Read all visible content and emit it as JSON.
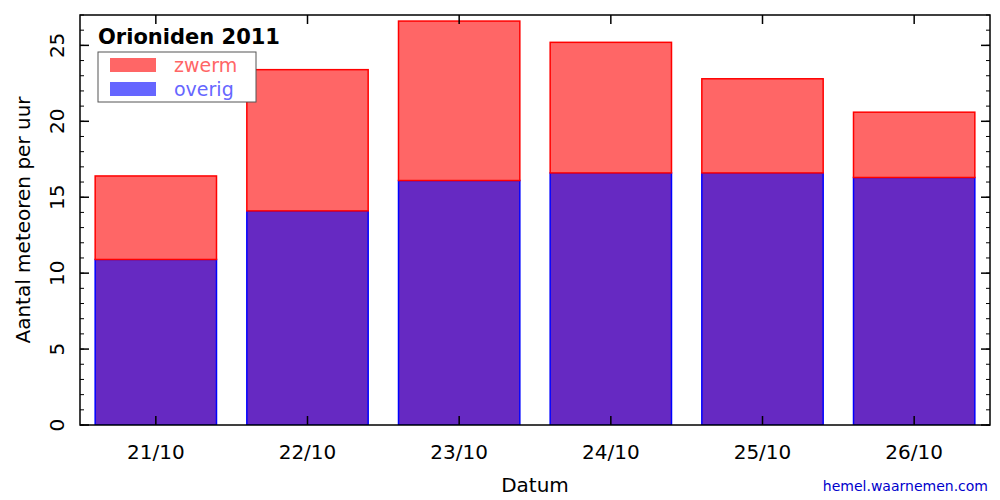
{
  "chart_data": {
    "type": "bar",
    "title": "Orioniden 2011",
    "x_label": "Datum",
    "y_label": "Aantal meteoren per uur",
    "categories": [
      "21/10",
      "22/10",
      "23/10",
      "24/10",
      "25/10",
      "26/10"
    ],
    "series": [
      {
        "name": "overig",
        "color": "#0000ff",
        "values": [
          10.9,
          14.1,
          16.1,
          16.6,
          16.6,
          16.3
        ]
      },
      {
        "name": "zwerm",
        "color": "#ff0000",
        "values": [
          5.5,
          9.3,
          10.5,
          8.6,
          6.2,
          4.3
        ]
      }
    ],
    "stacked": true,
    "legend": "upper left",
    "ylim": [
      0,
      27
    ],
    "yticks": [
      0,
      5,
      10,
      15,
      20,
      25
    ],
    "annotations": [
      "hemel.waarnemen.com"
    ]
  }
}
